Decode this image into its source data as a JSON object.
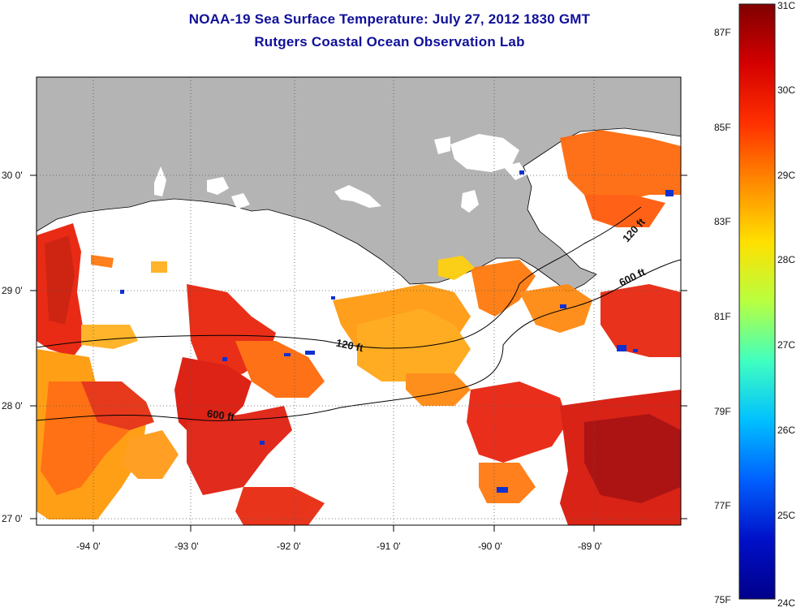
{
  "header": {
    "title": "NOAA-19 Sea Surface Temperature:  July 27, 2012 1830 GMT",
    "subtitle": "Rutgers Coastal Ocean Observation Lab"
  },
  "map": {
    "lat_labels": [
      "30 0'",
      "29 0'",
      "28 0'",
      "27 0'"
    ],
    "lon_labels": [
      "-94 0'",
      "-93 0'",
      "-92 0'",
      "-91 0'",
      "-90 0'",
      "-89 0'"
    ],
    "contour_labels": [
      "120 ft",
      "600 ft",
      "120 ft",
      "600 ft"
    ]
  },
  "colorbar": {
    "fahrenheit": [
      "87F",
      "85F",
      "83F",
      "81F",
      "79F",
      "77F",
      "75F"
    ],
    "celsius": [
      "31C",
      "30C",
      "29C",
      "28C",
      "27C",
      "26C",
      "25C",
      "24C"
    ],
    "colors": [
      "#800000",
      "#d40000",
      "#ff3000",
      "#ff8a00",
      "#ffe000",
      "#b8ff40",
      "#40ffc0",
      "#00c0ff",
      "#0060ff",
      "#0010c8",
      "#00008a"
    ]
  },
  "colors": {
    "land": "#b4b4b4",
    "ocean_nodata": "#ffffff",
    "title": "#10109a"
  }
}
